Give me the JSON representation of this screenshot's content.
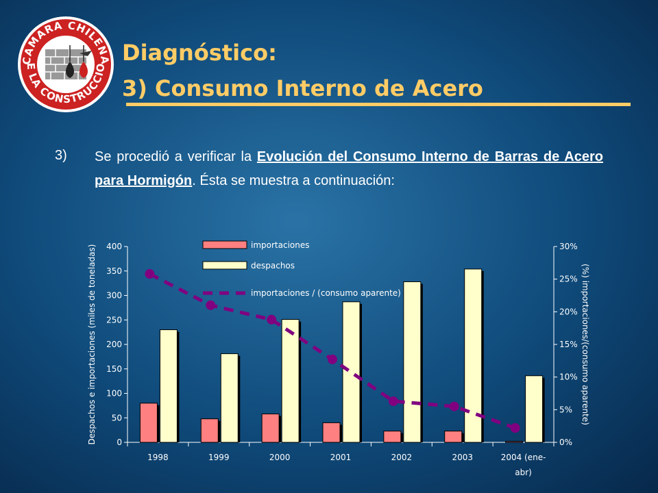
{
  "header": {
    "title_line1": "Diagnóstico:",
    "title_line2": "3) Consumo Interno de Acero",
    "logo_text_top": "CAMARA CHILENA",
    "logo_text_bottom": "DE LA CONSTRUCCION"
  },
  "bullet": {
    "number": "3)",
    "text_before": "Se procedió a verificar la ",
    "text_underlined": "Evolución del Consumo Interno de Barras de Acero  para Hormigón",
    "text_after": ". Ésta se muestra a continuación:"
  },
  "colors": {
    "title": "#ffcc66",
    "importaciones": "#ff8080",
    "despachos": "#ffffcc",
    "ratio_line": "#800080"
  },
  "chart_data": {
    "type": "bar",
    "categories": [
      "1998",
      "1999",
      "2000",
      "2001",
      "2002",
      "2003",
      "2004 (ene-abr)"
    ],
    "category_labels": [
      [
        "1998"
      ],
      [
        "1999"
      ],
      [
        "2000"
      ],
      [
        "2001"
      ],
      [
        "2002"
      ],
      [
        "2003"
      ],
      [
        "2004 (ene-",
        "abr)"
      ]
    ],
    "series": [
      {
        "name": "importaciones",
        "type": "bar",
        "axis": "left",
        "values": [
          80,
          48,
          58,
          40,
          23,
          23,
          2
        ]
      },
      {
        "name": "despachos",
        "type": "bar",
        "axis": "left",
        "values": [
          230,
          181,
          251,
          287,
          328,
          354,
          136
        ]
      },
      {
        "name": "importaciones / (consumo aparente)",
        "type": "line",
        "axis": "right",
        "values": [
          25.8,
          21.0,
          18.8,
          12.7,
          6.3,
          5.5,
          2.2
        ]
      }
    ],
    "ylabel": "Despachos e importaciones (miles de toneladas)",
    "y2label": "(%) importaciones/(consumo aparente)",
    "ylim": [
      0,
      400
    ],
    "yticks": [
      "0",
      "50",
      "100",
      "150",
      "200",
      "250",
      "300",
      "350",
      "400"
    ],
    "y2lim": [
      0,
      30
    ],
    "y2ticks": [
      "0%",
      "5%",
      "10%",
      "15%",
      "20%",
      "25%",
      "30%"
    ],
    "legend": "top-left inside plot",
    "grid": false
  }
}
